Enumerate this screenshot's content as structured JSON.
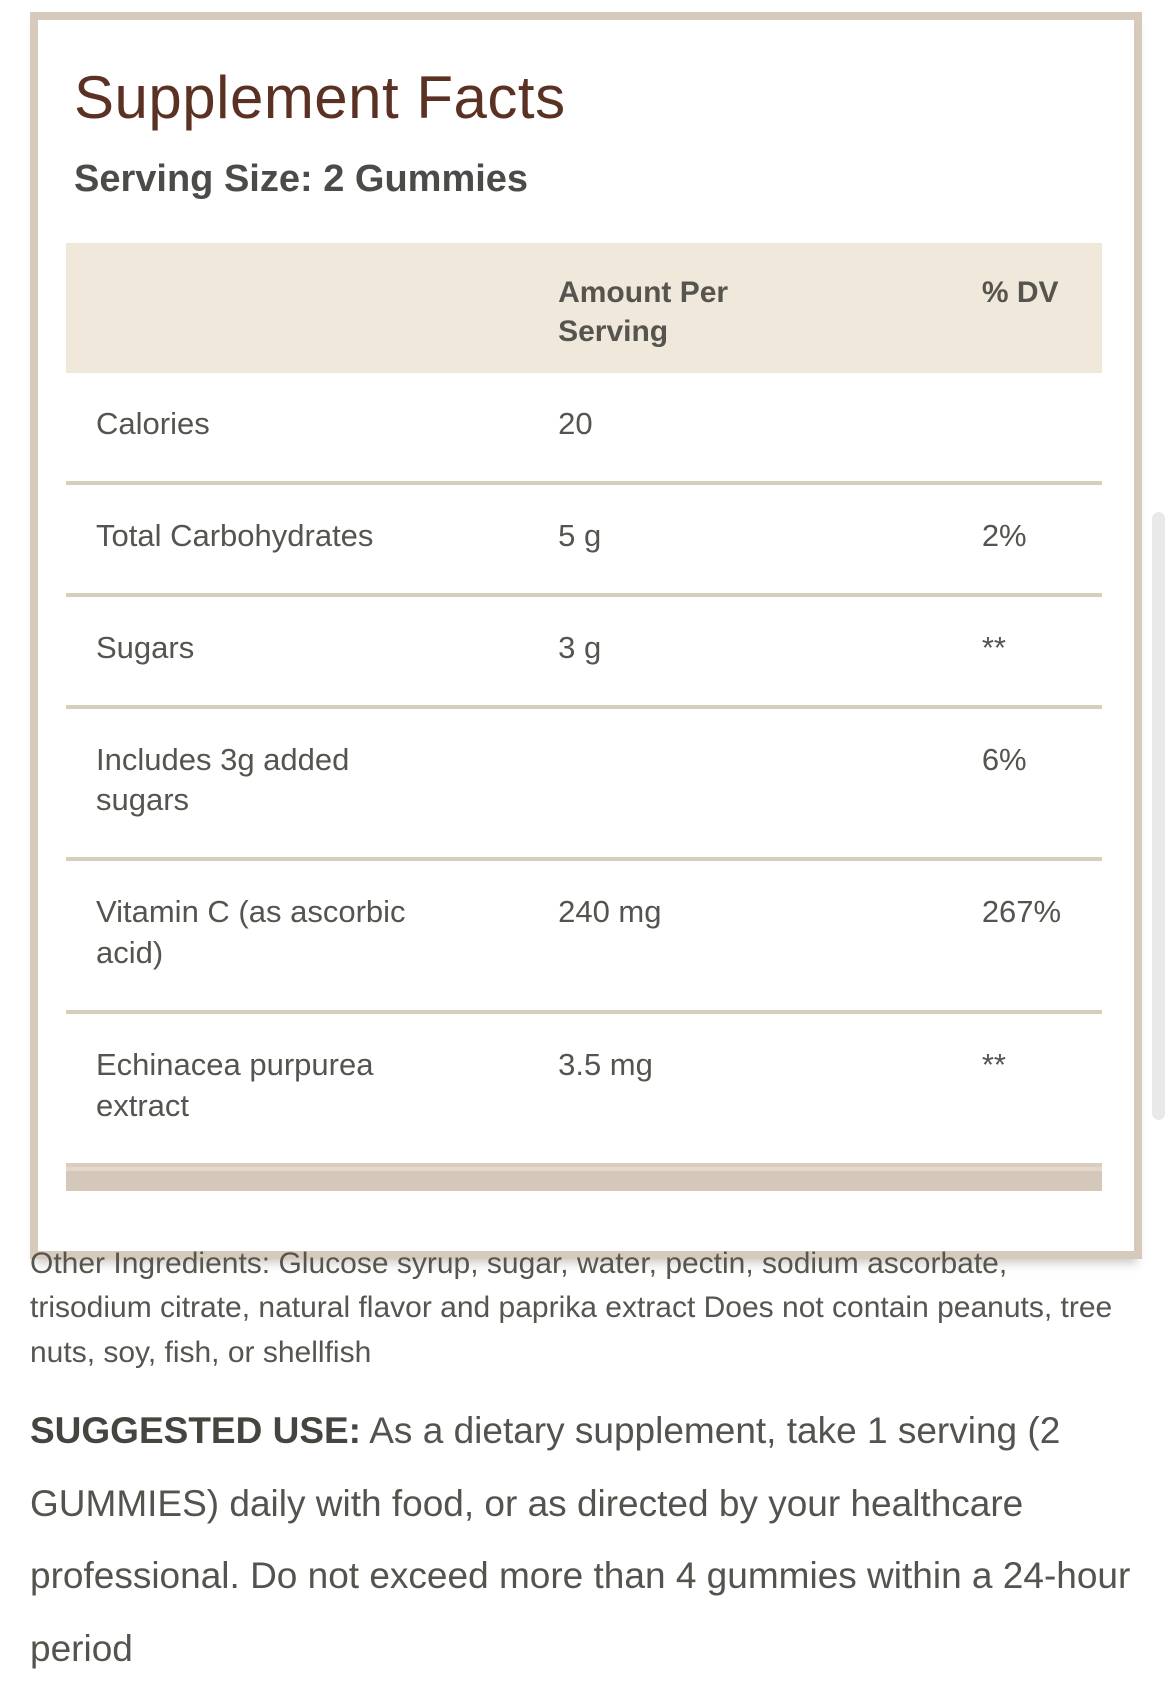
{
  "panel": {
    "title": "Supplement Facts",
    "serving_size": "Serving Size: 2 Gummies",
    "table": {
      "headers": {
        "name": "",
        "amount": "Amount Per Serving",
        "dv": "% DV"
      },
      "rows": [
        {
          "name": "Calories",
          "amount": "20",
          "dv": ""
        },
        {
          "name": "Total Carbohydrates",
          "amount": "5 g",
          "dv": "2%"
        },
        {
          "name": "Sugars",
          "amount": "3 g",
          "dv": "**"
        },
        {
          "name": "Includes 3g added sugars",
          "amount": "",
          "dv": "6%"
        },
        {
          "name": "Vitamin C (as ascorbic acid)",
          "amount": "240 mg",
          "dv": "267%"
        },
        {
          "name": "Echinacea purpurea extract",
          "amount": "3.5 mg",
          "dv": "**"
        }
      ]
    }
  },
  "other_ingredients": {
    "text": "Other Ingredients: Glucose syrup, sugar, water, pectin, sodium ascorbate, trisodium citrate, natural flavor and paprika extract Does not contain peanuts, tree nuts, soy, fish, or shellfish"
  },
  "suggested_use": {
    "label": "SUGGESTED USE:",
    "text": "As a dietary supplement, take 1 serving (2 GUMMIES) daily with food, or as directed by your healthcare professional. Do not exceed more than 4 gummies within a 24-hour period"
  },
  "colors": {
    "panel_border": "#d6cabc",
    "table_header_bg": "#efe8db",
    "table_footer_bar": "#d5c8ba",
    "row_separator": "#d9cdbe",
    "title_brown": "#5a3122",
    "text_gray": "#55544e"
  }
}
